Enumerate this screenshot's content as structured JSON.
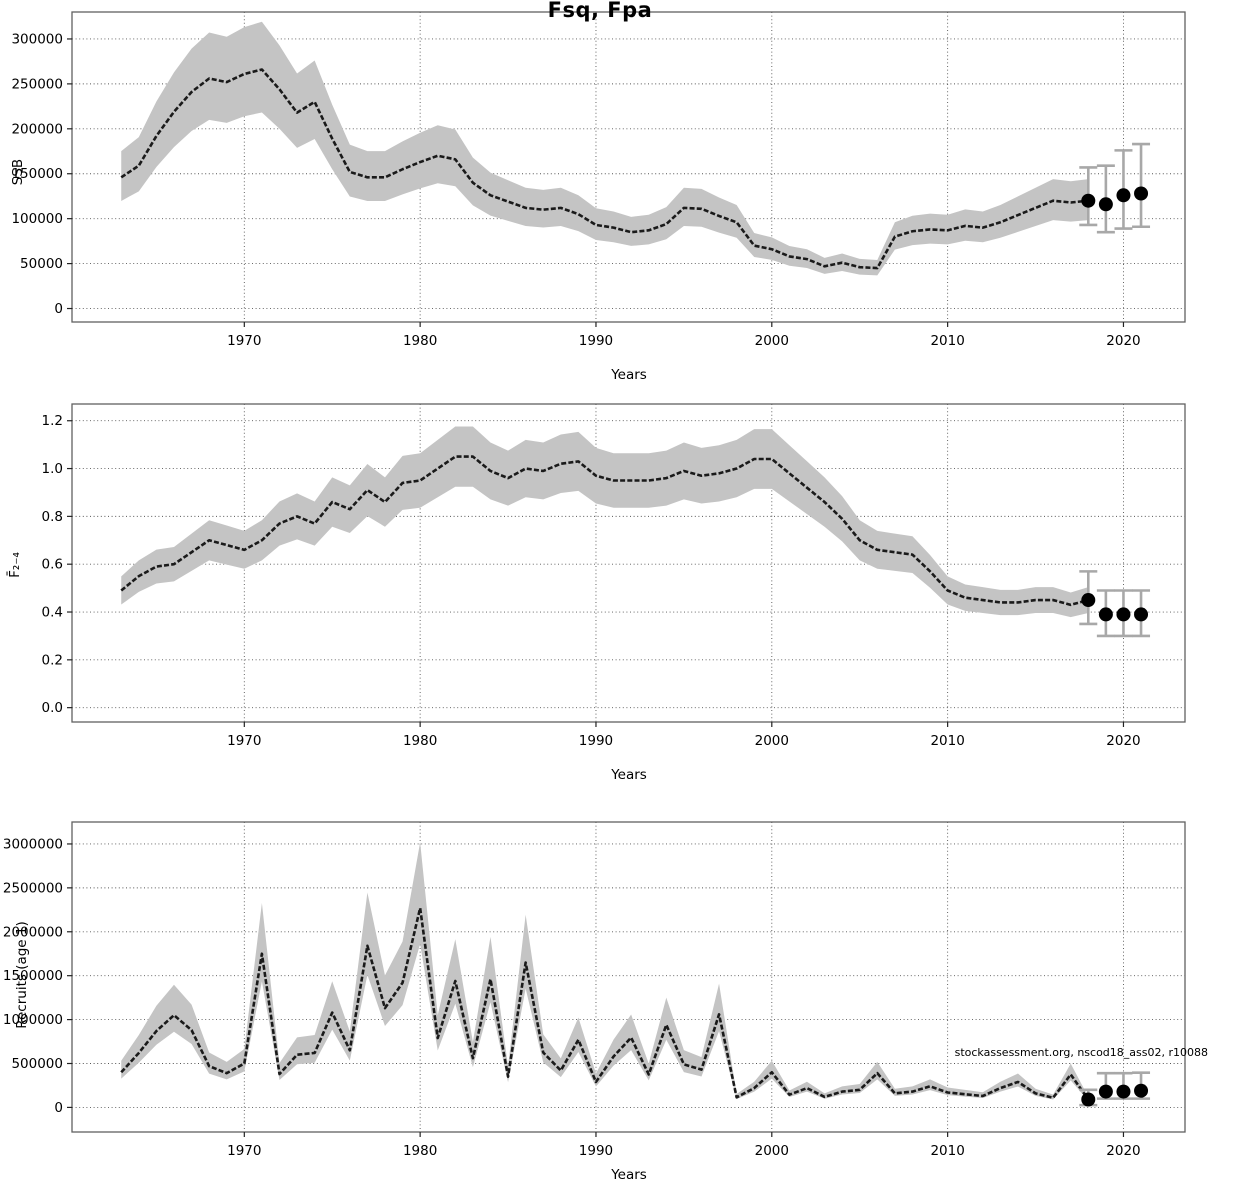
{
  "title": "Fsq, Fpa",
  "xaxis_label": "Years",
  "footer_note": "stockassessment.org, nscod18_ass02, r10088",
  "colors": {
    "band": "#c4c4c4",
    "line": "#1a1a1a",
    "grid": "#555555",
    "frame": "#606060",
    "tick": "#222222",
    "errorbar": "#a8a8a8",
    "dot": "#000000",
    "background": "#ffffff"
  },
  "chart_data": [
    {
      "name": "ssb",
      "type": "line",
      "subtype": "median-line-with-confidence-band-and-forecast-points",
      "ylabel": "SSB",
      "xlabel": "Years",
      "years": {
        "start": 1963,
        "end": 2018
      },
      "values": [
        146000,
        159000,
        192000,
        219000,
        241000,
        256000,
        252000,
        261000,
        266000,
        244000,
        218000,
        230000,
        189000,
        152000,
        146000,
        146000,
        155000,
        163000,
        170000,
        166000,
        140000,
        126000,
        119000,
        112000,
        110000,
        112000,
        105000,
        93000,
        90000,
        85000,
        87000,
        94000,
        112000,
        111000,
        103000,
        96000,
        70000,
        66000,
        58000,
        55000,
        47000,
        51000,
        46000,
        45000,
        80000,
        86000,
        88000,
        87000,
        92000,
        90000,
        96000,
        104000,
        112000,
        120000,
        118000,
        120000
      ],
      "band_ratio": {
        "lower": 0.82,
        "upper": 1.2
      },
      "forecast": {
        "years": [
          2018,
          2019,
          2020,
          2021
        ],
        "values": [
          120000,
          116000,
          126000,
          128000
        ],
        "lo": [
          93000,
          85000,
          89000,
          91000
        ],
        "hi": [
          157000,
          159000,
          176000,
          183000
        ]
      },
      "yticks": [
        0,
        50000,
        100000,
        150000,
        200000,
        250000,
        300000
      ],
      "ytick_decimals": 0,
      "ylim": [
        -15000,
        330000
      ],
      "xticks": [
        1970,
        1980,
        1990,
        2000,
        2010,
        2020
      ],
      "xlim": [
        1960.2,
        2023.5
      ],
      "grid": true
    },
    {
      "name": "fbar",
      "type": "line",
      "subtype": "median-line-with-confidence-band-and-forecast-points",
      "ylabel": "F̄₂₋₄",
      "xlabel": "Years",
      "years": {
        "start": 1963,
        "end": 2018
      },
      "values": [
        0.49,
        0.55,
        0.59,
        0.6,
        0.65,
        0.7,
        0.68,
        0.66,
        0.7,
        0.77,
        0.8,
        0.77,
        0.86,
        0.83,
        0.91,
        0.86,
        0.94,
        0.95,
        1.0,
        1.05,
        1.05,
        0.99,
        0.96,
        1.0,
        0.99,
        1.02,
        1.03,
        0.97,
        0.95,
        0.95,
        0.95,
        0.96,
        0.99,
        0.97,
        0.98,
        1.0,
        1.04,
        1.04,
        0.98,
        0.92,
        0.86,
        0.79,
        0.7,
        0.66,
        0.65,
        0.64,
        0.57,
        0.49,
        0.46,
        0.45,
        0.44,
        0.44,
        0.45,
        0.45,
        0.43,
        0.45
      ],
      "band_ratio": {
        "lower": 0.88,
        "upper": 1.12
      },
      "forecast": {
        "years": [
          2018,
          2019,
          2020,
          2021
        ],
        "values": [
          0.45,
          0.39,
          0.39,
          0.39
        ],
        "lo": [
          0.35,
          0.3,
          0.3,
          0.3
        ],
        "hi": [
          0.57,
          0.49,
          0.49,
          0.49
        ]
      },
      "yticks": [
        0.0,
        0.2,
        0.4,
        0.6,
        0.8,
        1.0,
        1.2
      ],
      "ytick_decimals": 1,
      "ylim": [
        -0.06,
        1.27
      ],
      "xticks": [
        1970,
        1980,
        1990,
        2000,
        2010,
        2020
      ],
      "xlim": [
        1960.2,
        2023.5
      ],
      "grid": true
    },
    {
      "name": "recruits",
      "type": "line",
      "subtype": "median-line-with-confidence-band-and-forecast-points",
      "ylabel": "Recruits (age 1)",
      "xlabel": "Years",
      "years": {
        "start": 1963,
        "end": 2018
      },
      "values": [
        400000,
        620000,
        870000,
        1050000,
        880000,
        470000,
        390000,
        500000,
        1750000,
        380000,
        600000,
        620000,
        1080000,
        650000,
        1840000,
        1130000,
        1420000,
        2270000,
        790000,
        1440000,
        560000,
        1460000,
        350000,
        1650000,
        625000,
        420000,
        770000,
        290000,
        580000,
        795000,
        375000,
        940000,
        490000,
        430000,
        1060000,
        115000,
        220000,
        400000,
        145000,
        220000,
        120000,
        180000,
        200000,
        390000,
        160000,
        180000,
        240000,
        170000,
        150000,
        130000,
        220000,
        290000,
        160000,
        110000,
        375000,
        90000
      ],
      "band_ratio": {
        "lower": 0.82,
        "upper": 1.33
      },
      "forecast": {
        "years": [
          2018,
          2019,
          2020,
          2021
        ],
        "values": [
          90000,
          180000,
          180000,
          190000
        ],
        "lo": [
          26000,
          100000,
          100000,
          100000
        ],
        "hi": [
          200000,
          390000,
          390000,
          395000
        ]
      },
      "yticks": [
        0,
        500000,
        1000000,
        1500000,
        2000000,
        2500000,
        3000000
      ],
      "ytick_decimals": 0,
      "ylim": [
        -280000,
        3250000
      ],
      "xticks": [
        1970,
        1980,
        1990,
        2000,
        2010,
        2020
      ],
      "xlim": [
        1960.2,
        2023.5
      ],
      "grid": true
    }
  ]
}
